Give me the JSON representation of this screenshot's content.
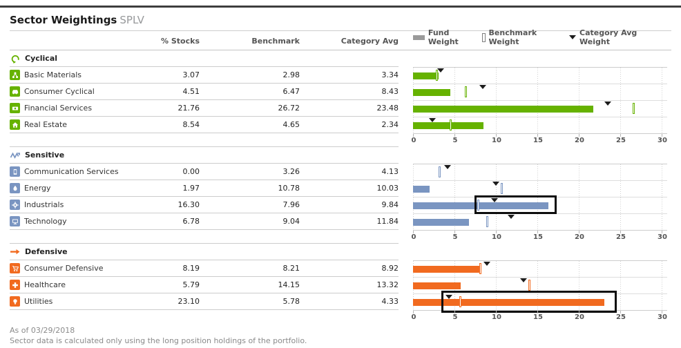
{
  "header": {
    "title": "Sector Weightings",
    "ticker": "SPLV"
  },
  "columns": {
    "stocks": "% Stocks",
    "benchmark": "Benchmark",
    "category_avg": "Category Avg"
  },
  "legend": {
    "fund": "Fund Weight",
    "benchmark": "Benchmark Weight",
    "category": "Category Avg Weight"
  },
  "axis": {
    "ticks": [
      "0",
      "5",
      "10",
      "15",
      "20",
      "25",
      "30"
    ],
    "max": 30
  },
  "colors": {
    "cyclical": "#66b200",
    "sensitive": "#7a95c1",
    "defensive": "#f16a1f",
    "marker_triangle": "#1c1c1c",
    "legend_bar": "#9a9a9a"
  },
  "groups": [
    {
      "name": "Cyclical",
      "rows": [
        {
          "sector": "Basic Materials",
          "stocks": "3.07",
          "benchmark": "2.98",
          "category_avg": "3.34"
        },
        {
          "sector": "Consumer Cyclical",
          "stocks": "4.51",
          "benchmark": "6.47",
          "category_avg": "8.43"
        },
        {
          "sector": "Financial Services",
          "stocks": "21.76",
          "benchmark": "26.72",
          "category_avg": "23.48"
        },
        {
          "sector": "Real Estate",
          "stocks": "8.54",
          "benchmark": "4.65",
          "category_avg": "2.34"
        }
      ]
    },
    {
      "name": "Sensitive",
      "rows": [
        {
          "sector": "Communication Services",
          "stocks": "0.00",
          "benchmark": "3.26",
          "category_avg": "4.13"
        },
        {
          "sector": "Energy",
          "stocks": "1.97",
          "benchmark": "10.78",
          "category_avg": "10.03"
        },
        {
          "sector": "Industrials",
          "stocks": "16.30",
          "benchmark": "7.96",
          "category_avg": "9.84",
          "highlight": {
            "from": 7.4,
            "to": 17.3
          }
        },
        {
          "sector": "Technology",
          "stocks": "6.78",
          "benchmark": "9.04",
          "category_avg": "11.84"
        }
      ]
    },
    {
      "name": "Defensive",
      "rows": [
        {
          "sector": "Consumer Defensive",
          "stocks": "8.19",
          "benchmark": "8.21",
          "category_avg": "8.92"
        },
        {
          "sector": "Healthcare",
          "stocks": "5.79",
          "benchmark": "14.15",
          "category_avg": "13.32"
        },
        {
          "sector": "Utilities",
          "stocks": "23.10",
          "benchmark": "5.78",
          "category_avg": "4.33",
          "highlight": {
            "from": 3.4,
            "to": 24.6
          }
        }
      ]
    }
  ],
  "footer": {
    "as_of": "As of 03/29/2018",
    "note": "Sector data is calculated only using the long position holdings of the portfolio."
  },
  "chart_data": [
    {
      "type": "bar",
      "orientation": "horizontal",
      "title": "Cyclical",
      "categories": [
        "Basic Materials",
        "Consumer Cyclical",
        "Financial Services",
        "Real Estate"
      ],
      "series": [
        {
          "name": "Fund Weight",
          "values": [
            3.07,
            4.51,
            21.76,
            8.54
          ]
        },
        {
          "name": "Benchmark Weight",
          "values": [
            2.98,
            6.47,
            26.72,
            4.65
          ]
        },
        {
          "name": "Category Avg Weight",
          "values": [
            3.34,
            8.43,
            23.48,
            2.34
          ]
        }
      ],
      "xlim": [
        0,
        30
      ],
      "xticks": [
        0,
        5,
        10,
        15,
        20,
        25,
        30
      ]
    },
    {
      "type": "bar",
      "orientation": "horizontal",
      "title": "Sensitive",
      "categories": [
        "Communication Services",
        "Energy",
        "Industrials",
        "Technology"
      ],
      "series": [
        {
          "name": "Fund Weight",
          "values": [
            0.0,
            1.97,
            16.3,
            6.78
          ]
        },
        {
          "name": "Benchmark Weight",
          "values": [
            3.26,
            10.78,
            7.96,
            9.04
          ]
        },
        {
          "name": "Category Avg Weight",
          "values": [
            4.13,
            10.03,
            9.84,
            11.84
          ]
        }
      ],
      "xlim": [
        0,
        30
      ],
      "xticks": [
        0,
        5,
        10,
        15,
        20,
        25,
        30
      ]
    },
    {
      "type": "bar",
      "orientation": "horizontal",
      "title": "Defensive",
      "categories": [
        "Consumer Defensive",
        "Healthcare",
        "Utilities"
      ],
      "series": [
        {
          "name": "Fund Weight",
          "values": [
            8.19,
            5.79,
            23.1
          ]
        },
        {
          "name": "Benchmark Weight",
          "values": [
            8.21,
            14.15,
            5.78
          ]
        },
        {
          "name": "Category Avg Weight",
          "values": [
            8.92,
            13.32,
            4.33
          ]
        }
      ],
      "xlim": [
        0,
        30
      ],
      "xticks": [
        0,
        5,
        10,
        15,
        20,
        25,
        30
      ]
    }
  ]
}
